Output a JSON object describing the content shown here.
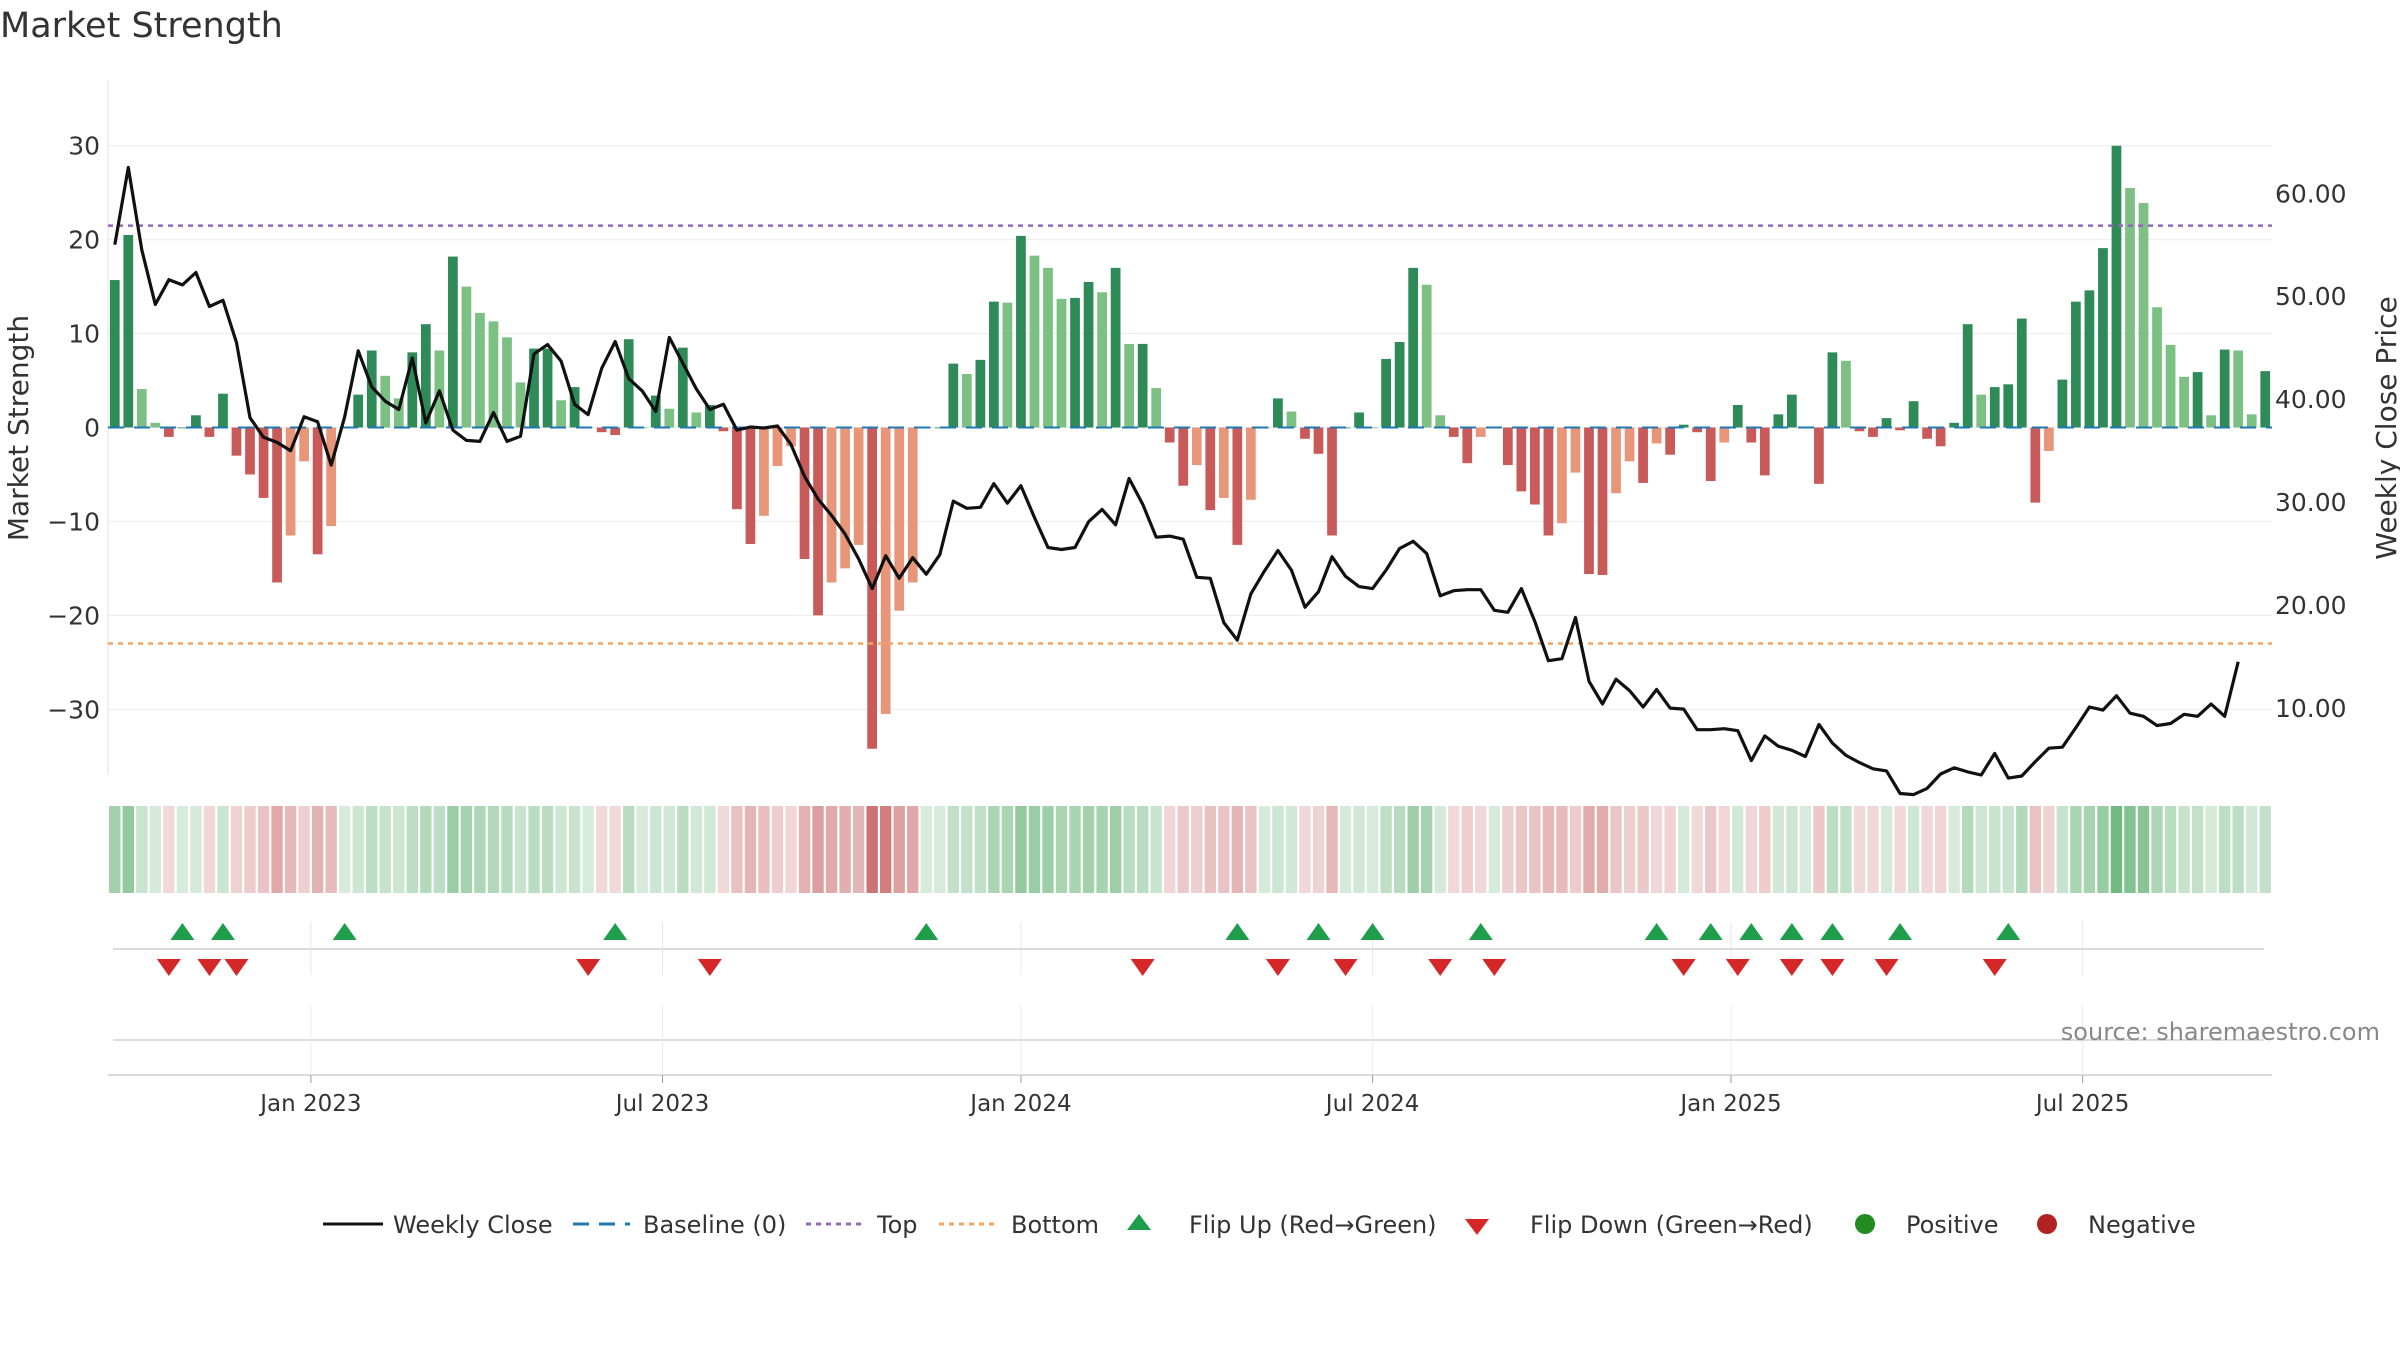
{
  "chart_data": {
    "type": "bar",
    "title": "Market Strength",
    "ylabel_left": "Market Strength",
    "ylabel_right": "Weekly Close Price",
    "y_left_lim": [
      -37,
      37
    ],
    "y_left_ticks": [
      30,
      20,
      10,
      0,
      -10,
      -20,
      -30
    ],
    "y_left_tick_labels": [
      "30",
      "20",
      "10",
      "0",
      "−10",
      "−20",
      "−30"
    ],
    "y_right_lim": [
      3.5,
      71
    ],
    "y_right_ticks": [
      60,
      50,
      40,
      30,
      20,
      10
    ],
    "y_right_tick_labels": [
      "60.00",
      "50.00",
      "40.00",
      "30.00",
      "20.00",
      "10.00"
    ],
    "x_tick_labels": [
      "Jan 2023",
      "Jul 2023",
      "Jan 2024",
      "Jul 2024",
      "Jan 2025",
      "Jul 2025"
    ],
    "x_tick_weeks": [
      14.5,
      40.5,
      67,
      93,
      119.5,
      145.5
    ],
    "top_level": 21.5,
    "bottom_level": -23,
    "strength": [
      15.7,
      20.5,
      4.1,
      0.5,
      -1,
      0,
      1.3,
      -1,
      3.6,
      -3,
      -5,
      -7.5,
      -16.5,
      -11.5,
      -3.6,
      -13.5,
      -10.5,
      0,
      3.5,
      8.2,
      5.5,
      3.1,
      8,
      11,
      8.2,
      18.2,
      15,
      12.2,
      11.3,
      9.6,
      4.8,
      8.4,
      8.4,
      2.9,
      4.3,
      0,
      -0.5,
      -0.8,
      9.4,
      0,
      3.4,
      2,
      8.5,
      1.6,
      2.4,
      -0.4,
      -8.7,
      -12.4,
      -9.4,
      -4.1,
      -2,
      -14,
      -20,
      -16.5,
      -15,
      -12.5,
      -34.2,
      -30.5,
      -19.5,
      -16.5,
      0,
      0,
      6.8,
      5.7,
      7.2,
      13.4,
      13.3,
      20.4,
      18.3,
      17,
      13.7,
      13.8,
      15.5,
      14.4,
      17,
      8.9,
      8.9,
      4.2,
      -1.6,
      -6.2,
      -4,
      -8.8,
      -7.5,
      -12.5,
      -7.7,
      0,
      3.1,
      1.7,
      -1.2,
      -2.8,
      -11.5,
      0,
      1.6,
      0,
      7.3,
      9.1,
      17,
      15.2,
      1.3,
      -1,
      -3.8,
      -1,
      0,
      -4,
      -6.8,
      -8.2,
      -11.5,
      -10.2,
      -4.8,
      -15.6,
      -15.7,
      -7,
      -3.6,
      -5.9,
      -1.7,
      -2.9,
      0.3,
      -0.5,
      -5.7,
      -1.6,
      2.4,
      -1.6,
      -5.1,
      1.4,
      3.5,
      0,
      -6,
      8,
      7.1,
      -0.4,
      -1,
      1,
      -0.3,
      2.8,
      -1.2,
      -2,
      0.5,
      11,
      3.5,
      4.3,
      4.6,
      11.6,
      -8,
      -2.5,
      5.1,
      13.4,
      14.6,
      19.1,
      30,
      25.5,
      23.9,
      12.8,
      8.8,
      5.4,
      5.9,
      1.3,
      8.3,
      8.2,
      1.4,
      6
    ],
    "weekly_close": [
      55,
      62.5,
      54.5,
      49.2,
      51.6,
      51.1,
      52.3,
      49,
      49.6,
      45.5,
      38.2,
      36.3,
      35.8,
      35,
      38.3,
      37.8,
      33.6,
      38.3,
      44.7,
      41.2,
      39.8,
      39,
      44,
      37.7,
      40.8,
      37,
      36,
      35.9,
      38.7,
      35.9,
      36.4,
      44.4,
      45.3,
      43.7,
      39.5,
      38.5,
      43,
      45.6,
      42,
      40.8,
      38.8,
      46,
      43.5,
      41,
      39,
      39.5,
      37,
      37.3,
      37.2,
      37.4,
      35.6,
      32.5,
      30.3,
      28.7,
      26.9,
      24.5,
      21.6,
      24.8,
      22.6,
      24.6,
      23,
      24.9,
      30.1,
      29.4,
      29.5,
      31.8,
      29.9,
      31.6,
      28.5,
      25.6,
      25.4,
      25.6,
      28.1,
      29.3,
      27.8,
      32.3,
      29.8,
      26.6,
      26.7,
      26.4,
      22.7,
      22.6,
      18.3,
      16.6,
      21.1,
      23.3,
      25.3,
      23.4,
      19.8,
      21.3,
      24.7,
      22.8,
      21.8,
      21.6,
      23.4,
      25.5,
      26.2,
      25,
      20.9,
      21.4,
      21.5,
      21.5,
      19.5,
      19.3,
      21.6,
      18.4,
      14.6,
      14.8,
      18.8,
      12.6,
      10.4,
      12.8,
      11.7,
      10.1,
      11.8,
      10,
      9.9,
      7.9,
      7.9,
      8,
      7.8,
      4.9,
      7.3,
      6.3,
      5.9,
      5.3,
      8.4,
      6.6,
      5.4,
      4.7,
      4.1,
      3.9,
      1.7,
      1.6,
      2.2,
      3.6,
      4.2,
      3.8,
      3.5,
      5.6,
      3.2,
      3.4,
      4.8,
      6.1,
      6.2,
      8.1,
      10.1,
      9.8,
      11.2,
      9.5,
      9.2,
      8.3,
      8.5,
      9.4,
      9.2,
      10.4,
      9.2,
      14.5
    ],
    "flip_up_weeks": [
      5,
      8,
      17,
      37,
      60,
      83,
      89,
      93,
      101,
      114,
      118,
      121,
      124,
      127,
      132,
      140
    ],
    "flip_down_weeks": [
      4,
      7,
      9,
      35,
      44,
      76,
      86,
      91,
      98,
      102,
      116,
      120,
      124,
      127,
      131,
      139
    ],
    "legend_position": "bottom-center",
    "grid": true,
    "source_text": "source: sharemaestro.com",
    "legend": {
      "weekly_close": "Weekly Close",
      "baseline": "Baseline (0)",
      "top": "Top",
      "bottom": "Bottom",
      "flip_up": "Flip Up (Red→Green)",
      "flip_down": "Flip Down (Green→Red)",
      "positive": "Positive",
      "negative": "Negative"
    },
    "colors": {
      "positive_dark": "#2e8b57",
      "positive_light": "#7cc084",
      "negative_dark": "#c85a5a",
      "negative_light": "#e8967a",
      "price_line": "#111111",
      "top_line": "#9467bd",
      "bottom_line": "#f4a460",
      "baseline": "#1f77b4",
      "flip_up": "#1e9e4a",
      "flip_down": "#d62728",
      "positive_marker": "#228b22",
      "negative_marker": "#b22222",
      "heat_pos": "#4aa55e",
      "heat_neg": "#c45b5b"
    }
  }
}
